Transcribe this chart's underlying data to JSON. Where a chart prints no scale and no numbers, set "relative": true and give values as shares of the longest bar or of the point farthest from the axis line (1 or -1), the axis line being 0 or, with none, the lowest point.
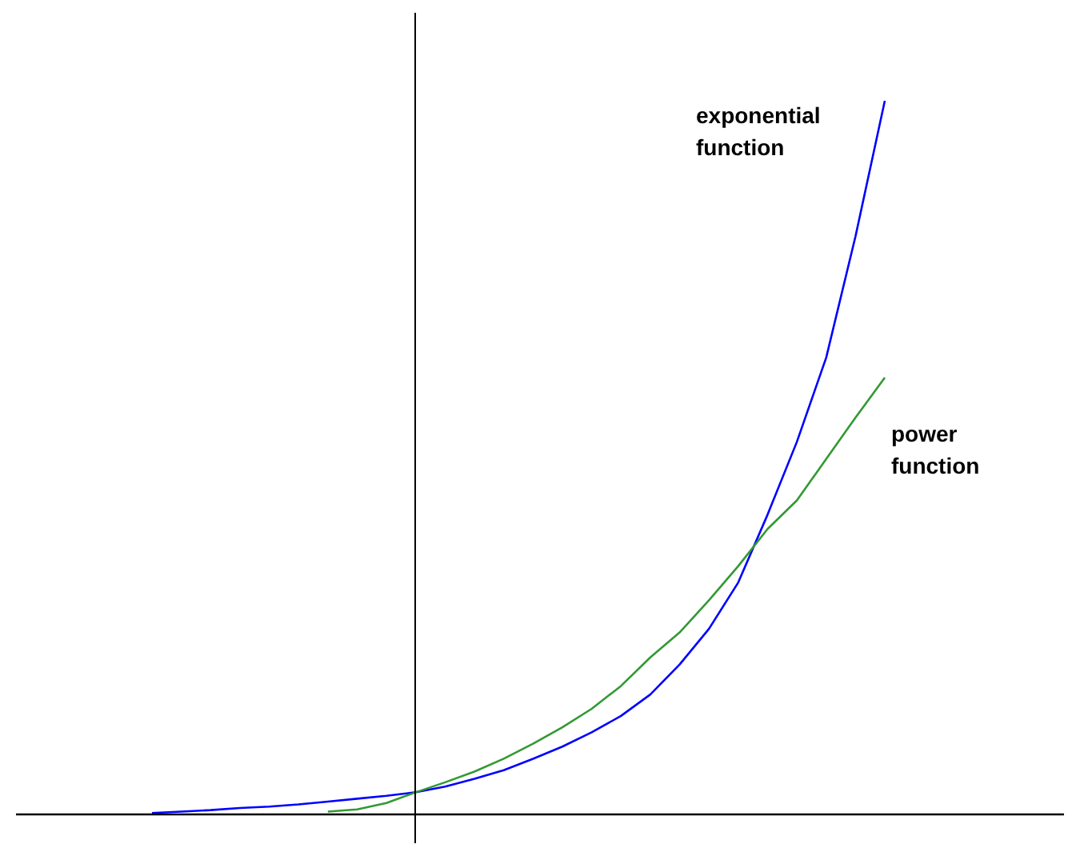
{
  "chart_data": {
    "type": "line",
    "relative": true,
    "tick_labels": false,
    "grid": false,
    "legend": false,
    "marker": "none",
    "line_style": "solid",
    "categories": [
      null,
      null,
      null,
      null,
      null,
      null,
      null,
      null,
      null,
      null,
      null,
      null,
      null,
      null,
      null,
      null,
      null,
      null,
      null,
      null,
      null,
      null,
      null,
      null,
      null,
      null
    ],
    "series": [
      {
        "name": "exponential function",
        "color": "#0000ff",
        "values": [
          0.002,
          0.004,
          0.006,
          0.009,
          0.011,
          0.014,
          0.018,
          0.022,
          0.026,
          0.031,
          0.039,
          0.05,
          0.062,
          0.078,
          0.095,
          0.115,
          0.138,
          0.168,
          0.21,
          0.26,
          0.325,
          0.42,
          0.522,
          0.64,
          0.81,
          1
        ]
      },
      {
        "name": "power function",
        "color": "#339933",
        "values": [
          null,
          null,
          null,
          null,
          null,
          null,
          0.004,
          0.007,
          0.016,
          0.031,
          0.045,
          0.06,
          0.078,
          0.099,
          0.122,
          0.148,
          0.18,
          0.22,
          0.255,
          0.3,
          0.348,
          0.4,
          0.44,
          0.498,
          0.556,
          0.612
        ]
      }
    ]
  }
}
